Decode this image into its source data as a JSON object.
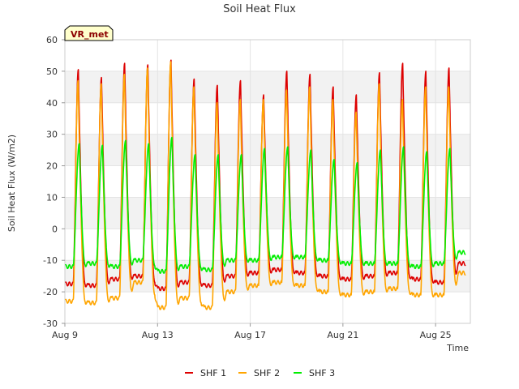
{
  "chart_data": {
    "type": "line",
    "title": "Soil Heat Flux",
    "xlabel": "Time",
    "ylabel": "Soil Heat Flux (W/m2)",
    "site_label": "VR_met",
    "xlim": [
      9.0,
      26.5
    ],
    "ylim": [
      -30,
      60
    ],
    "yticks": [
      -30,
      -20,
      -10,
      0,
      10,
      20,
      30,
      40,
      50,
      60
    ],
    "xticks": [
      {
        "day": 9,
        "label": "Aug 9"
      },
      {
        "day": 13,
        "label": "Aug 13"
      },
      {
        "day": 17,
        "label": "Aug 17"
      },
      {
        "day": 21,
        "label": "Aug 21"
      },
      {
        "day": 25,
        "label": "Aug 25"
      }
    ],
    "days": [
      9,
      10,
      11,
      12,
      13,
      14,
      15,
      16,
      17,
      18,
      19,
      20,
      21,
      22,
      23,
      24,
      25,
      26
    ],
    "series": [
      {
        "name": "SHF 1",
        "color": "#dd0000",
        "phase": 0.58,
        "peak_day": [
          50.5,
          48,
          52.5,
          52,
          53.5,
          47.5,
          45.5,
          47,
          42.5,
          50,
          49,
          45,
          42.5,
          49.5,
          52.5,
          50,
          51,
          0
        ],
        "night_min": [
          -17.5,
          -18,
          -16,
          -15,
          -19,
          -17,
          -18,
          -15,
          -14,
          -13,
          -14,
          -15,
          -16,
          -15,
          -14,
          -16,
          -17,
          -11
        ]
      },
      {
        "name": "SHF 2",
        "color": "#ffa500",
        "phase": 0.57,
        "peak_day": [
          47,
          46,
          49,
          51,
          53,
          45,
          40,
          41,
          41,
          44,
          45,
          41,
          37,
          46,
          41,
          45,
          45,
          0
        ],
        "night_min": [
          -23,
          -23.5,
          -22,
          -17,
          -25,
          -22,
          -25,
          -20,
          -18,
          -17,
          -18,
          -20,
          -21,
          -20,
          -19,
          -21,
          -21,
          -14
        ]
      },
      {
        "name": "SHF 3",
        "color": "#00ee00",
        "phase": 0.62,
        "peak_day": [
          27,
          26.5,
          28,
          27,
          29,
          23.5,
          23.5,
          23.5,
          25.5,
          26,
          25,
          22,
          21,
          25,
          26,
          24.5,
          25.5,
          0
        ],
        "night_min": [
          -12,
          -11,
          -12,
          -10,
          -13.5,
          -12,
          -13,
          -10,
          -10,
          -9,
          -9,
          -10,
          -11,
          -11,
          -11,
          -12,
          -11,
          -7.5
        ]
      }
    ],
    "end_day": 26.3,
    "legend": "bottom-center",
    "grid": true
  }
}
